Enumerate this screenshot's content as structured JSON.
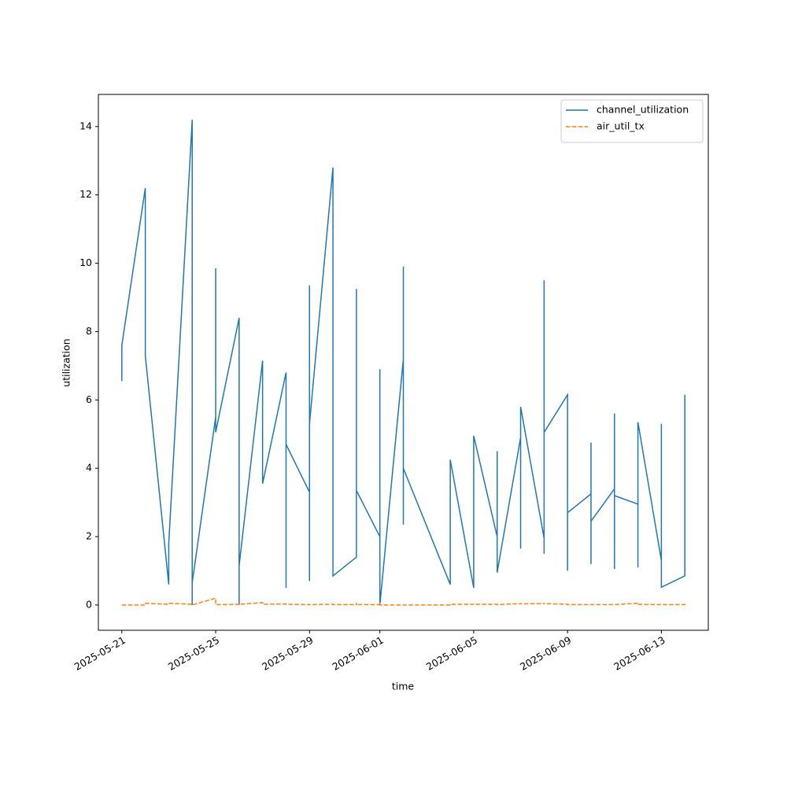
{
  "chart_data": {
    "type": "line",
    "xlabel": "time",
    "ylabel": "utilization",
    "x": [
      "2025-05-21",
      "2025-05-21",
      "2025-05-22",
      "2025-05-22",
      "2025-05-23",
      "2025-05-23",
      "2025-05-24",
      "2025-05-24",
      "2025-05-24",
      "2025-05-25",
      "2025-05-25",
      "2025-05-25",
      "2025-05-25",
      "2025-05-25",
      "2025-05-26",
      "2025-05-26",
      "2025-05-26",
      "2025-05-27",
      "2025-05-27",
      "2025-05-28",
      "2025-05-28",
      "2025-05-28",
      "2025-05-29",
      "2025-05-29",
      "2025-05-29",
      "2025-05-29",
      "2025-05-30",
      "2025-05-30",
      "2025-05-30",
      "2025-05-30",
      "2025-05-31",
      "2025-05-31",
      "2025-05-31",
      "2025-05-31",
      "2025-05-31",
      "2025-06-01",
      "2025-06-01",
      "2025-06-01",
      "2025-06-01",
      "2025-06-01",
      "2025-06-02",
      "2025-06-02",
      "2025-06-02",
      "2025-06-02",
      "2025-06-02",
      "2025-06-04",
      "2025-06-04",
      "2025-06-05",
      "2025-06-05",
      "2025-06-05",
      "2025-06-05",
      "2025-06-06",
      "2025-06-06",
      "2025-06-06",
      "2025-06-06",
      "2025-06-07",
      "2025-06-07",
      "2025-06-07",
      "2025-06-07",
      "2025-06-08",
      "2025-06-08",
      "2025-06-08",
      "2025-06-08",
      "2025-06-08",
      "2025-06-08",
      "2025-06-09",
      "2025-06-09",
      "2025-06-09",
      "2025-06-09",
      "2025-06-09",
      "2025-06-09",
      "2025-06-09",
      "2025-06-10",
      "2025-06-10",
      "2025-06-10",
      "2025-06-10",
      "2025-06-11",
      "2025-06-11",
      "2025-06-11",
      "2025-06-11",
      "2025-06-11",
      "2025-06-11",
      "2025-06-11",
      "2025-06-12",
      "2025-06-12",
      "2025-06-12",
      "2025-06-12",
      "2025-06-12",
      "2025-06-13",
      "2025-06-13",
      "2025-06-13",
      "2025-06-13",
      "2025-06-14",
      "2025-06-14",
      "2025-06-14",
      "2025-06-14",
      "2025-06-14",
      "2025-06-14"
    ],
    "series": [
      {
        "name": "channel_utilization",
        "color": "#1f77b4",
        "dash": false,
        "values": [
          6.55,
          7.6,
          12.2,
          7.3,
          0.6,
          1.8,
          14.2,
          0,
          0.65,
          5.5,
          9.1,
          9.85,
          8.1,
          5.05,
          8.4,
          0,
          1.15,
          7.15,
          3.55,
          6.8,
          0.5,
          4.7,
          3.3,
          9.35,
          0.7,
          5.3,
          12.8,
          5.55,
          4.65,
          0.85,
          1.4,
          9.25,
          4.05,
          4.15,
          3.35,
          2.0,
          5.75,
          3.2,
          6.9,
          0,
          7.2,
          9.9,
          2.35,
          9.0,
          4.0,
          0.6,
          4.25,
          0.5,
          4.3,
          3.65,
          4.95,
          2.0,
          4.5,
          1.4,
          0.95,
          4.9,
          2.35,
          1.65,
          5.8,
          1.95,
          5.5,
          1.5,
          4.2,
          9.5,
          5.05,
          6.15,
          5.0,
          3.9,
          2.3,
          4.5,
          1.0,
          2.7,
          3.25,
          1.2,
          4.75,
          2.45,
          3.4,
          5.6,
          1.05,
          3.1,
          1.05,
          4.5,
          3.2,
          2.95,
          4.95,
          4.6,
          1.1,
          5.35,
          1.3,
          5.3,
          0.55,
          0.52,
          0.85,
          1.6,
          4.75,
          4.35,
          3.2,
          6.15
        ]
      },
      {
        "name": "air_util_tx",
        "color": "#ff7f0e",
        "dash": true,
        "values": [
          0,
          0,
          0,
          0.05,
          0.02,
          0.05,
          0.02,
          0,
          0,
          0.2,
          0.1,
          0.03,
          0.02,
          0.01,
          0.02,
          0.01,
          0.02,
          0.07,
          0.02,
          0.03,
          0.02,
          0.02,
          0.01,
          0.02,
          0.02,
          0.01,
          0.02,
          0.02,
          0.01,
          0.01,
          0.01,
          0.07,
          0.01,
          0.01,
          0.01,
          0.01,
          0.08,
          0.02,
          0,
          0,
          0,
          0,
          0,
          0,
          0,
          0,
          0.02,
          0.02,
          0.02,
          0.01,
          0.02,
          0.02,
          0.01,
          0.01,
          0.01,
          0.04,
          0.03,
          0.02,
          0.03,
          0.04,
          0.03,
          0.03,
          0.03,
          0.06,
          0.04,
          0.02,
          0.01,
          0.01,
          0.01,
          0.01,
          0.01,
          0.01,
          0.01,
          0.01,
          0.01,
          0.01,
          0.01,
          0.01,
          0.01,
          0.01,
          0.01,
          0.01,
          0.01,
          0.05,
          0.03,
          0.02,
          0.01,
          0.02,
          0.01,
          0.01,
          0.01,
          0.01,
          0.01,
          0.03,
          0.01,
          0.01,
          0.02,
          0.02
        ]
      }
    ],
    "xlim": [
      "2025-05-20",
      "2025-06-15"
    ],
    "xticks": [
      "2025-05-21",
      "2025-05-25",
      "2025-05-29",
      "2025-06-01",
      "2025-06-05",
      "2025-06-09",
      "2025-06-13"
    ],
    "ylim": [
      -0.74,
      14.94
    ],
    "yticks": [
      0,
      2,
      4,
      6,
      8,
      10,
      12,
      14
    ],
    "legend": "upper right",
    "grid": false
  }
}
